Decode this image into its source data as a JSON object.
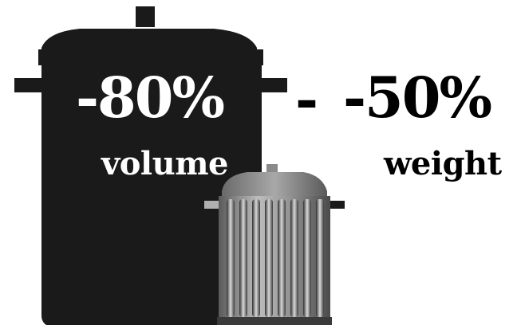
{
  "left_stat": {
    "value": "-80%",
    "label": "volume"
  },
  "separator": "-",
  "right_stat": {
    "value": "-50%",
    "label": "weight"
  },
  "icons": {
    "large_can": "large-trash-can-icon",
    "small_can": "small-trash-can-icon"
  },
  "colors": {
    "large_can": "#1a1a1a",
    "small_can_body": "#8c8c8c",
    "text_on_dark": "#ffffff",
    "text_on_light": "#000000",
    "background": "#ffffff"
  }
}
